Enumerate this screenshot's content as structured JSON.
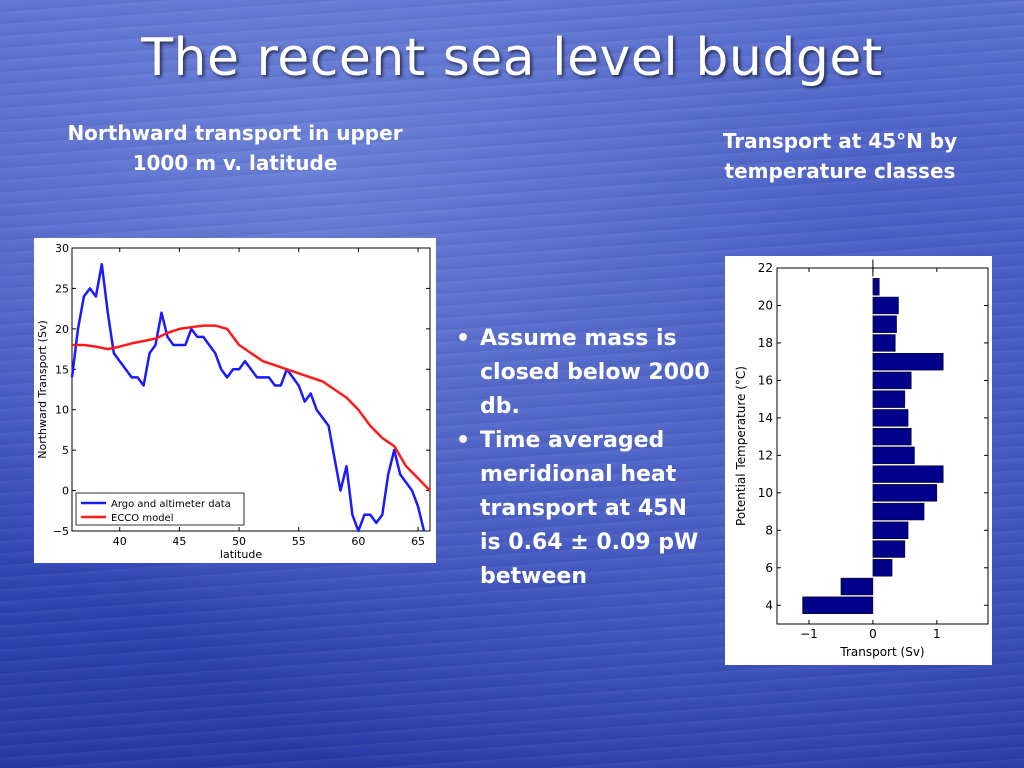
{
  "slide": {
    "title": "The recent sea level budget",
    "caption_left": "Northward transport in upper 1000 m v. latitude",
    "caption_right": "Transport at 45°N by temperature classes",
    "bullets": [
      "Assume mass is closed below 2000 db.",
      "Time averaged meridional heat transport at 45N is 0.64 ± 0.09 pW between"
    ]
  },
  "colors": {
    "argo": "#1a1aff",
    "ecco": "#ff1a1a",
    "bars": "#00008b"
  },
  "chart_data": [
    {
      "type": "line",
      "xlabel": "latitude",
      "ylabel": "Northward Transport (Sv)",
      "xlim": [
        36,
        66
      ],
      "ylim": [
        -5,
        30
      ],
      "xticks": [
        40,
        45,
        50,
        55,
        60,
        65
      ],
      "yticks": [
        -5,
        0,
        5,
        10,
        15,
        20,
        25,
        30
      ],
      "legend_position": "bottom-left",
      "series": [
        {
          "name": "Argo and altimeter data",
          "color": "#1a1aff",
          "x": [
            36,
            36.5,
            37,
            37.5,
            38,
            38.5,
            39,
            39.5,
            40,
            40.5,
            41,
            41.5,
            42,
            42.5,
            43,
            43.5,
            44,
            44.5,
            45,
            45.5,
            46,
            46.5,
            47,
            47.5,
            48,
            48.5,
            49,
            49.5,
            50,
            50.5,
            51,
            51.5,
            52,
            52.5,
            53,
            53.5,
            54,
            54.5,
            55,
            55.5,
            56,
            56.5,
            57,
            57.5,
            58,
            58.5,
            59,
            59.5,
            60,
            60.5,
            61,
            61.5,
            62,
            62.5,
            63,
            63.5,
            64,
            64.5,
            65,
            65.5
          ],
          "y": [
            14,
            20,
            24,
            25,
            24,
            28,
            22,
            17,
            16,
            15,
            14,
            14,
            13,
            17,
            18,
            22,
            19,
            18,
            18,
            18,
            20,
            19,
            19,
            18,
            17,
            15,
            14,
            15,
            15,
            16,
            15,
            14,
            14,
            14,
            13,
            13,
            15,
            14,
            13,
            11,
            12,
            10,
            9,
            8,
            4,
            0,
            3,
            -3,
            -5,
            -3,
            -3,
            -4,
            -3,
            2,
            5,
            2,
            1,
            0,
            -2,
            -5
          ]
        },
        {
          "name": "ECCO model",
          "color": "#ff1a1a",
          "x": [
            36,
            37,
            38,
            39,
            40,
            41,
            42,
            43,
            44,
            45,
            46,
            47,
            48,
            49,
            50,
            51,
            52,
            53,
            54,
            55,
            56,
            57,
            58,
            59,
            60,
            61,
            62,
            63,
            64,
            65,
            66
          ],
          "y": [
            18,
            18,
            17.8,
            17.5,
            17.8,
            18.2,
            18.5,
            18.8,
            19.5,
            20,
            20.2,
            20.4,
            20.4,
            20,
            18,
            17,
            16,
            15.5,
            15,
            14.5,
            14,
            13.5,
            12.5,
            11.5,
            10,
            8,
            6.5,
            5.5,
            3,
            1.5,
            0
          ]
        }
      ]
    },
    {
      "type": "bar",
      "orientation": "horizontal",
      "xlabel": "Transport (Sv)",
      "ylabel": "Potential Temperature (°C)",
      "xlim": [
        -1.5,
        1.8
      ],
      "ylim": [
        3,
        22
      ],
      "xticks": [
        -1,
        0,
        1
      ],
      "xtick_labels": [
        "−1",
        "0",
        "1"
      ],
      "yticks": [
        4,
        6,
        8,
        10,
        12,
        14,
        16,
        18,
        20,
        22
      ],
      "categories": [
        4,
        5,
        6,
        7,
        8,
        9,
        10,
        11,
        12,
        13,
        14,
        15,
        16,
        17,
        18,
        19,
        20,
        21,
        22
      ],
      "values": [
        -1.1,
        -0.5,
        0.3,
        0.5,
        0.55,
        0.8,
        1.0,
        1.1,
        0.65,
        0.6,
        0.55,
        0.5,
        0.6,
        1.1,
        0.35,
        0.37,
        0.4,
        0.1,
        0.0
      ]
    }
  ]
}
